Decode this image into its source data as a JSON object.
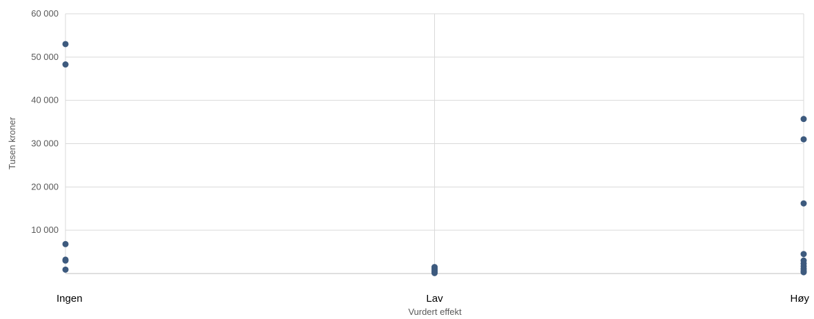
{
  "chart_data": {
    "type": "scatter",
    "categories": [
      "Ingen",
      "Lav",
      "Høy"
    ],
    "xlabel": "Vurdert effekt",
    "ylabel": "Tusen kroner",
    "ylim": [
      0,
      60000
    ],
    "yticks": [
      {
        "value": 10000,
        "label": "10 000"
      },
      {
        "value": 20000,
        "label": "20 000"
      },
      {
        "value": 30000,
        "label": "30 000"
      },
      {
        "value": 40000,
        "label": "40 000"
      },
      {
        "value": 50000,
        "label": "50 000"
      },
      {
        "value": 60000,
        "label": "60 000"
      }
    ],
    "grid": true,
    "marker_color": "#3d5a7e",
    "points": [
      {
        "category": "Ingen",
        "y": 53000
      },
      {
        "category": "Ingen",
        "y": 48300
      },
      {
        "category": "Ingen",
        "y": 6800
      },
      {
        "category": "Ingen",
        "y": 3200
      },
      {
        "category": "Ingen",
        "y": 3000
      },
      {
        "category": "Ingen",
        "y": 900
      },
      {
        "category": "Lav",
        "y": 1500
      },
      {
        "category": "Lav",
        "y": 1200
      },
      {
        "category": "Lav",
        "y": 900
      },
      {
        "category": "Lav",
        "y": 600
      },
      {
        "category": "Lav",
        "y": 300
      },
      {
        "category": "Lav",
        "y": 100
      },
      {
        "category": "Høy",
        "y": 35700
      },
      {
        "category": "Høy",
        "y": 31000
      },
      {
        "category": "Høy",
        "y": 16200
      },
      {
        "category": "Høy",
        "y": 4500
      },
      {
        "category": "Høy",
        "y": 3000
      },
      {
        "category": "Høy",
        "y": 2300
      },
      {
        "category": "Høy",
        "y": 1700
      },
      {
        "category": "Høy",
        "y": 1100
      },
      {
        "category": "Høy",
        "y": 600
      },
      {
        "category": "Høy",
        "y": 300
      }
    ]
  }
}
